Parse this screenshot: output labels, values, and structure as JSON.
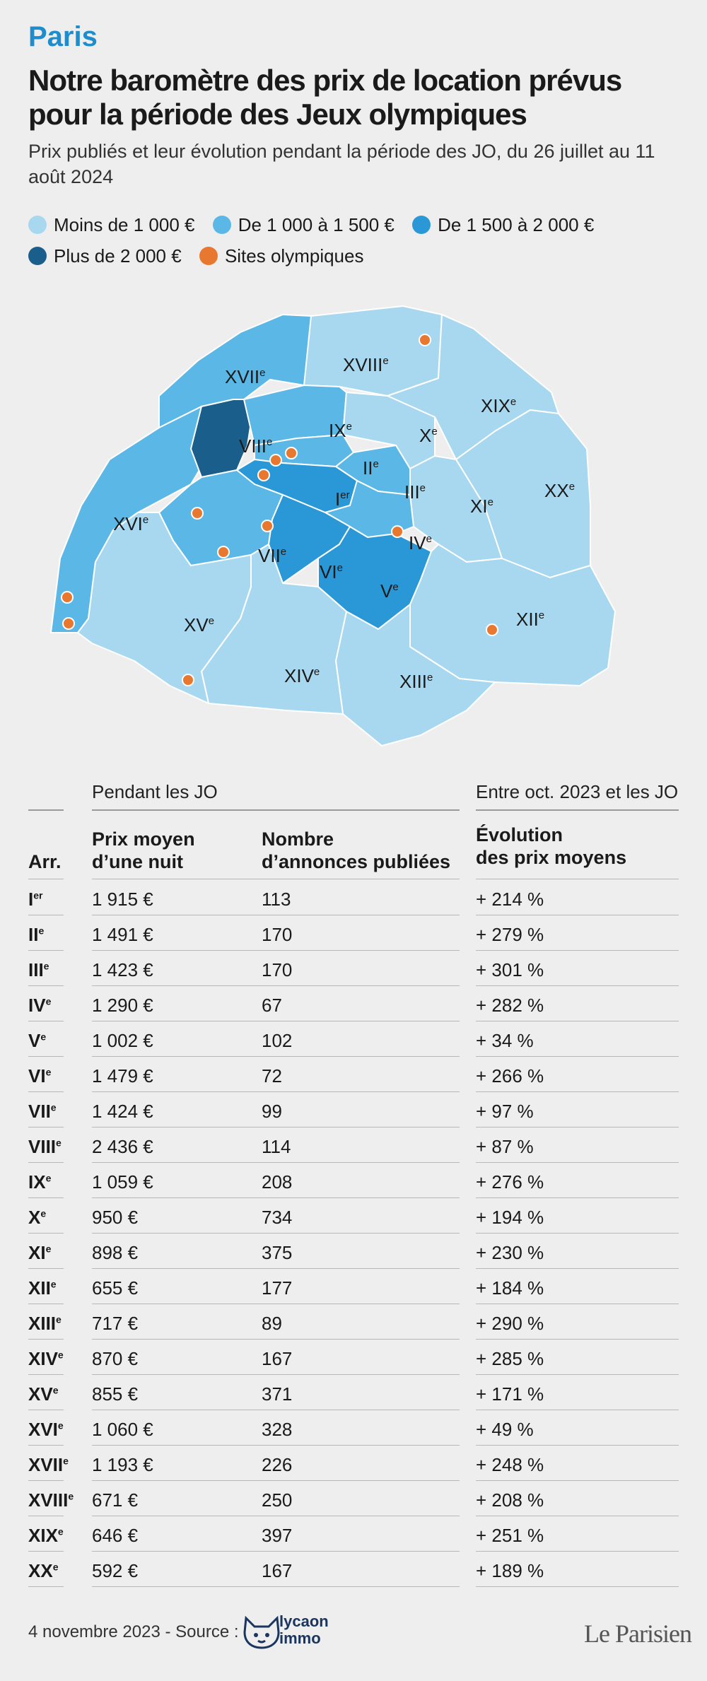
{
  "header": {
    "kicker": "Paris",
    "title": "Notre baromètre des prix de location prévus pour la période des Jeux olympiques",
    "subtitle": "Prix publiés et leur évolution pendant la période des JO, du 26 juillet au 11 août 2024"
  },
  "legend": [
    {
      "label": "Moins de 1 000 €",
      "color": "#a8d8f0"
    },
    {
      "label": "De 1 000 à 1 500 €",
      "color": "#5bb8e6"
    },
    {
      "label": "De 1 500 à 2 000 €",
      "color": "#2a98d6"
    },
    {
      "label": "Plus de 2 000 €",
      "color": "#1a5f8c"
    },
    {
      "label": "Sites olympiques",
      "color": "#e87830"
    }
  ],
  "map": {
    "labels": {
      "I": {
        "base": "I",
        "sup": "er"
      },
      "II": {
        "base": "II",
        "sup": "e"
      },
      "III": {
        "base": "III",
        "sup": "e"
      },
      "IV": {
        "base": "IV",
        "sup": "e"
      },
      "V": {
        "base": "V",
        "sup": "e"
      },
      "VI": {
        "base": "VI",
        "sup": "e"
      },
      "VII": {
        "base": "VII",
        "sup": "e"
      },
      "VIII": {
        "base": "VIII",
        "sup": "e"
      },
      "IX": {
        "base": "IX",
        "sup": "e"
      },
      "X": {
        "base": "X",
        "sup": "e"
      },
      "XI": {
        "base": "XI",
        "sup": "e"
      },
      "XII": {
        "base": "XII",
        "sup": "e"
      },
      "XIII": {
        "base": "XIII",
        "sup": "e"
      },
      "XIV": {
        "base": "XIV",
        "sup": "e"
      },
      "XV": {
        "base": "XV",
        "sup": "e"
      },
      "XVI": {
        "base": "XVI",
        "sup": "e"
      },
      "XVII": {
        "base": "XVII",
        "sup": "e"
      },
      "XVIII": {
        "base": "XVIII",
        "sup": "e"
      },
      "XIX": {
        "base": "XIX",
        "sup": "e"
      },
      "XX": {
        "base": "XX",
        "sup": "e"
      }
    },
    "colors": {
      "light": "#a8d8f0",
      "mid": "#5bb8e6",
      "strong": "#2a98d6",
      "dark": "#1a5f8c",
      "site": "#e87830"
    }
  },
  "table": {
    "group_left": "Pendant les JO",
    "group_right": "Entre oct. 2023 et les JO",
    "col_arr": "Arr.",
    "col_price_1": "Prix moyen",
    "col_price_2": "d’une nuit",
    "col_count_1": "Nombre",
    "col_count_2": "d’annonces publiées",
    "col_evo_1": "Évolution",
    "col_evo_2": "des prix moyens",
    "rows": [
      {
        "arr": "I",
        "sup": "er",
        "price": "1 915 €",
        "count": "113",
        "evo": "+ 214 %"
      },
      {
        "arr": "II",
        "sup": "e",
        "price": "1 491 €",
        "count": "170",
        "evo": "+ 279 %"
      },
      {
        "arr": "III",
        "sup": "e",
        "price": "1 423 €",
        "count": "170",
        "evo": "+ 301 %"
      },
      {
        "arr": "IV",
        "sup": "e",
        "price": "1 290 €",
        "count": "67",
        "evo": "+ 282 %"
      },
      {
        "arr": "V",
        "sup": "e",
        "price": "1 002 €",
        "count": "102",
        "evo": "+ 34 %"
      },
      {
        "arr": "VI",
        "sup": "e",
        "price": "1 479 €",
        "count": "72",
        "evo": "+ 266 %"
      },
      {
        "arr": "VII",
        "sup": "e",
        "price": "1 424 €",
        "count": "99",
        "evo": "+ 97 %"
      },
      {
        "arr": "VIII",
        "sup": "e",
        "price": "2 436 €",
        "count": "114",
        "evo": "+ 87 %"
      },
      {
        "arr": "IX",
        "sup": "e",
        "price": "1 059 €",
        "count": "208",
        "evo": "+ 276 %"
      },
      {
        "arr": "X",
        "sup": "e",
        "price": "950 €",
        "count": "734",
        "evo": "+ 194 %"
      },
      {
        "arr": "XI",
        "sup": "e",
        "price": "898 €",
        "count": "375",
        "evo": "+ 230 %"
      },
      {
        "arr": "XII",
        "sup": "e",
        "price": "655 €",
        "count": "177",
        "evo": "+ 184 %"
      },
      {
        "arr": "XIII",
        "sup": "e",
        "price": "717 €",
        "count": "89",
        "evo": "+ 290 %"
      },
      {
        "arr": "XIV",
        "sup": "e",
        "price": "870 €",
        "count": "167",
        "evo": "+ 285 %"
      },
      {
        "arr": "XV",
        "sup": "e",
        "price": "855 €",
        "count": "371",
        "evo": "+ 171 %"
      },
      {
        "arr": "XVI",
        "sup": "e",
        "price": "1 060 €",
        "count": "328",
        "evo": "+ 49 %"
      },
      {
        "arr": "XVII",
        "sup": "e",
        "price": "1 193 €",
        "count": "226",
        "evo": "+ 248 %"
      },
      {
        "arr": "XVIII",
        "sup": "e",
        "price": "671 €",
        "count": "250",
        "evo": "+ 208 %"
      },
      {
        "arr": "XIX",
        "sup": "e",
        "price": "646 €",
        "count": "397",
        "evo": "+ 251 %"
      },
      {
        "arr": "XX",
        "sup": "e",
        "price": "592 €",
        "count": "167",
        "evo": "+ 189 %"
      }
    ]
  },
  "footer": {
    "credit": "4 novembre 2023 - Source :",
    "source_line1": "lycaon",
    "source_line2": "immo",
    "brand": "Le Parisien"
  }
}
